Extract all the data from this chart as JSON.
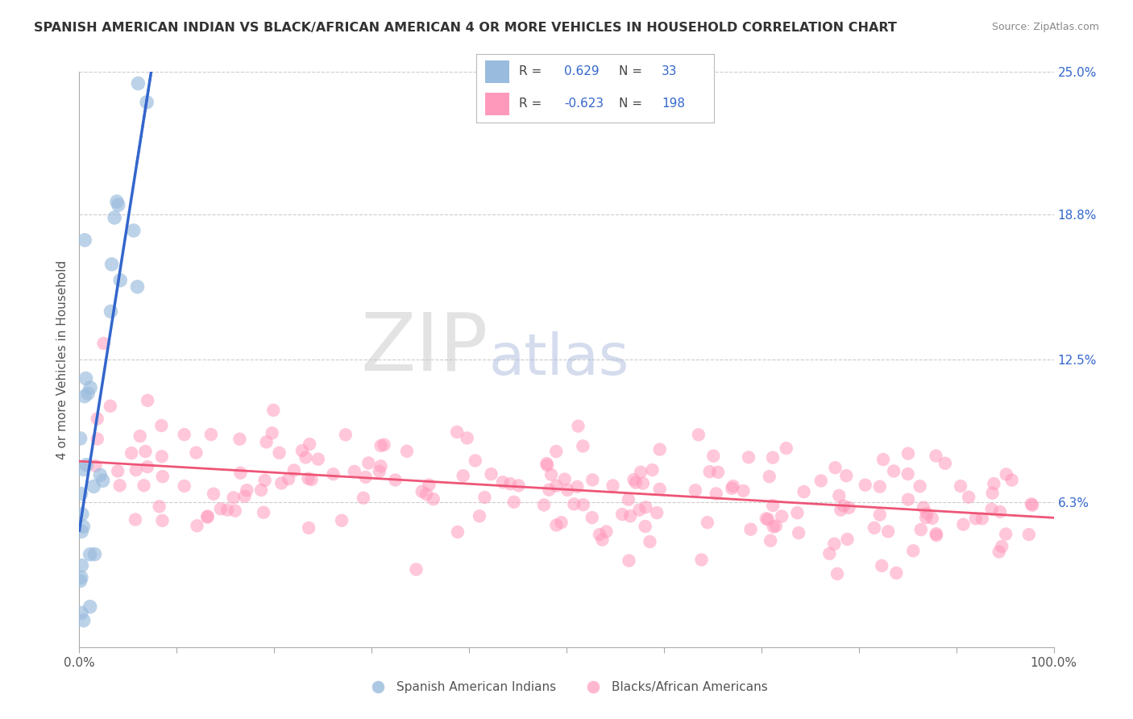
{
  "title": "SPANISH AMERICAN INDIAN VS BLACK/AFRICAN AMERICAN 4 OR MORE VEHICLES IN HOUSEHOLD CORRELATION CHART",
  "source": "Source: ZipAtlas.com",
  "ylabel": "4 or more Vehicles in Household",
  "xlim": [
    0.0,
    100.0
  ],
  "ylim": [
    0.0,
    25.0
  ],
  "blue_R": 0.629,
  "blue_N": 33,
  "pink_R": -0.623,
  "pink_N": 198,
  "blue_color": "#99BBDD",
  "pink_color": "#FF99BB",
  "trend_blue": "#3366CC",
  "trend_pink": "#EE5577",
  "legend_label_blue": "Spanish American Indians",
  "legend_label_pink": "Blacks/African Americans",
  "ytick_vals": [
    6.3,
    12.5,
    18.8,
    25.0
  ],
  "ytick_labels": [
    "6.3%",
    "12.5%",
    "18.8%",
    "25.0%"
  ],
  "xtick_vals": [
    0,
    10,
    20,
    30,
    40,
    50,
    60,
    70,
    80,
    90,
    100
  ],
  "xtick_labels": [
    "0.0%",
    "",
    "",
    "",
    "",
    "",
    "",
    "",
    "",
    "",
    "100.0%"
  ]
}
